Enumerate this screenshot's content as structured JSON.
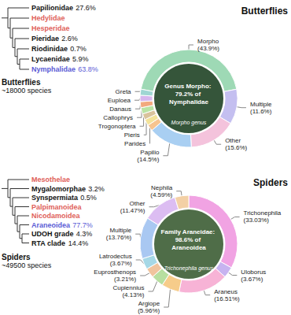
{
  "trees": [
    {
      "root": "Butterflies",
      "root_note": "~18000 species",
      "leaves": [
        {
          "name": "Papilionidae",
          "share": "27.6%",
          "color": "#111111"
        },
        {
          "name": "Hedylidae",
          "color": "#e0605a"
        },
        {
          "name": "Hesperidae",
          "color": "#e0605a"
        },
        {
          "name": "Pieridae",
          "share": "2.6%",
          "color": "#111111"
        },
        {
          "name": "Riodinidae",
          "share": "0.7%",
          "color": "#111111"
        },
        {
          "name": "Lycaenidae",
          "share": "5.9%",
          "color": "#111111"
        },
        {
          "name": "Nymphalidae",
          "share": "63.8%",
          "color": "#5b5bd6"
        }
      ]
    },
    {
      "root": "Spiders",
      "root_note": "~49500 species",
      "leaves": [
        {
          "name": "Mesothelae",
          "color": "#e0605a"
        },
        {
          "name": "Mygalomorphae",
          "share": "3.2%",
          "color": "#111111"
        },
        {
          "name": "Synspermiata",
          "share": "0.5%",
          "color": "#111111"
        },
        {
          "name": "Palpimanoidea",
          "color": "#e0605a"
        },
        {
          "name": "Nicodamoidea",
          "color": "#e0605a"
        },
        {
          "name": "Araneoidea",
          "share": "77.7%",
          "color": "#5b5bd6"
        },
        {
          "name": "UDOH grade",
          "share": "4.3%",
          "color": "#111111"
        },
        {
          "name": "RTA clade",
          "share": "14.4%",
          "color": "#111111"
        }
      ]
    }
  ],
  "chart_data": [
    {
      "type": "pie",
      "title": "Butterflies",
      "center_text": "Genus Morpho: 79.2% of Nymphalidae",
      "photo_caption": "Morpho genus",
      "categories": [
        "Morpho",
        "Multiple",
        "Other",
        "Papilio",
        "Parides",
        "Pieris",
        "Trogonoptera",
        "Callophrys",
        "Danaus",
        "Euploea",
        "Greta"
      ],
      "values": [
        43.9,
        11.6,
        15.6,
        14.5,
        2.1,
        2.1,
        2.0,
        2.1,
        2.0,
        2.1,
        2.0
      ],
      "value_labels": [
        "(43.9%)",
        "(11.6%)",
        "(15.6%)",
        "(14.5%)",
        null,
        null,
        null,
        null,
        null,
        null,
        null
      ],
      "colors": [
        "#9ed9b5",
        "#c4bff0",
        "#f4c3dc",
        "#a9cff2",
        "#f6c48f",
        "#f3e39a",
        "#d9c39c",
        "#b9e3a4",
        "#f2a97e",
        "#d7b6ee",
        "#9fd6d3"
      ]
    },
    {
      "type": "pie",
      "title": "Spiders",
      "center_text": "Family Araneidae: 98.6% of Araneoidea",
      "photo_caption": "Trichonephila genus",
      "categories": [
        "Trichonephila",
        "Uloborus",
        "Araneus",
        "Argiope",
        "Cupiennius",
        "Euprosthenops",
        "Latrodectus",
        "Multiple",
        "Other",
        "Nephila"
      ],
      "values": [
        33.03,
        3.67,
        16.51,
        5.96,
        4.13,
        3.21,
        3.67,
        13.76,
        11.47,
        4.59
      ],
      "value_labels": [
        "(33.03%)",
        "(3.67%)",
        "(16.51%)",
        "(5.96%)",
        "(4.13%)",
        "(3.21%)",
        "(3.67%)",
        "(13.76%)",
        "(11.47%)",
        "(4.59%)"
      ],
      "colors": [
        "#f1a3e3",
        "#c7b3f0",
        "#f7b3d6",
        "#f6cc8a",
        "#b7dfa0",
        "#f0c49e",
        "#a6d8e6",
        "#a9c8f2",
        "#dcbdf2",
        "#f3d0a5"
      ]
    }
  ]
}
